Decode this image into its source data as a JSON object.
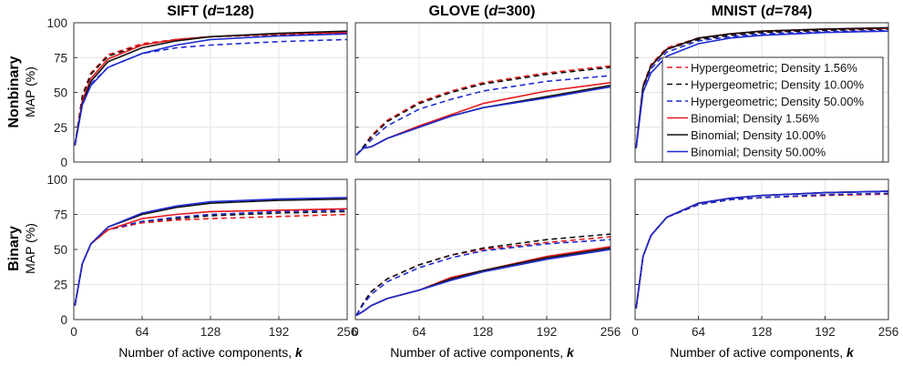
{
  "figure": {
    "row_labels": [
      "Nonbinary",
      "Binary"
    ],
    "column_titles": [
      {
        "name": "SIFT",
        "dim": "d",
        "eq": "=128"
      },
      {
        "name": "GLOVE",
        "dim": "d",
        "eq": "=300"
      },
      {
        "name": "MNIST",
        "dim": "d",
        "eq": "=784"
      }
    ],
    "ylabel": "MAP (%)",
    "xlabel_prefix": "Number of active components, ",
    "xlabel_var": "k"
  },
  "legend": {
    "placement": "top-right of Nonbinary MNIST panel",
    "entries": [
      {
        "label": "Hypergeometric; Density 1.56%",
        "color": "#e8191c",
        "dash": true
      },
      {
        "label": "Hypergeometric; Density 10.00%",
        "color": "#111111",
        "dash": true
      },
      {
        "label": "Hypergeometric; Density 50.00%",
        "color": "#1f2bd1",
        "dash": true
      },
      {
        "label": "Binomial; Density 1.56%",
        "color": "#e8191c",
        "dash": false
      },
      {
        "label": "Binomial; Density 10.00%",
        "color": "#111111",
        "dash": false
      },
      {
        "label": "Binomial; Density 50.00%",
        "color": "#1f2bd1",
        "dash": false
      }
    ]
  },
  "chart_data": [
    {
      "type": "line",
      "row": "Nonbinary",
      "title": "SIFT (d=128)",
      "xlabel": "Number of active components, k",
      "ylabel": "MAP (%)",
      "xlim": [
        0,
        256
      ],
      "ylim": [
        0,
        100
      ],
      "xticks": [
        0,
        64,
        128,
        192,
        256
      ],
      "yticks": [
        0,
        25,
        50,
        75,
        100
      ],
      "grid": true,
      "x": [
        1,
        8,
        16,
        32,
        64,
        96,
        128,
        192,
        256
      ],
      "series": [
        {
          "name": "Hypergeometric; Density 1.56%",
          "values": [
            12,
            48,
            64,
            77,
            85,
            88,
            90,
            91.5,
            92
          ]
        },
        {
          "name": "Hypergeometric; Density 10.00%",
          "values": [
            12,
            47,
            63,
            76,
            84,
            88,
            90,
            91.5,
            92
          ]
        },
        {
          "name": "Hypergeometric; Density 50.00%",
          "values": [
            12,
            42,
            56,
            68,
            78,
            82,
            84,
            86.5,
            88
          ]
        },
        {
          "name": "Binomial; Density 1.56%",
          "values": [
            12,
            44,
            60,
            74,
            84,
            88,
            90,
            92,
            93
          ]
        },
        {
          "name": "Binomial; Density 10.00%",
          "values": [
            12,
            42,
            58,
            72,
            82,
            87,
            90,
            92.5,
            94
          ]
        },
        {
          "name": "Binomial; Density 50.00%",
          "values": [
            12,
            41,
            55,
            68,
            78,
            84,
            88,
            90.5,
            92
          ]
        }
      ]
    },
    {
      "type": "line",
      "row": "Nonbinary",
      "title": "GLOVE (d=300)",
      "xlabel": "Number of active components, k",
      "ylabel": "MAP (%)",
      "xlim": [
        0,
        256
      ],
      "ylim": [
        0,
        100
      ],
      "xticks": [
        0,
        64,
        128,
        192,
        256
      ],
      "yticks": [
        0,
        25,
        50,
        75,
        100
      ],
      "grid": true,
      "x": [
        1,
        8,
        16,
        32,
        64,
        96,
        128,
        192,
        256
      ],
      "series": [
        {
          "name": "Hypergeometric; Density 1.56%",
          "values": [
            5,
            11,
            19,
            30,
            43,
            51,
            57,
            64,
            69
          ]
        },
        {
          "name": "Hypergeometric; Density 10.00%",
          "values": [
            5,
            11,
            18,
            29,
            42,
            50,
            56,
            63,
            68
          ]
        },
        {
          "name": "Hypergeometric; Density 50.00%",
          "values": [
            5,
            10,
            16,
            26,
            38,
            45,
            51,
            58,
            62
          ]
        },
        {
          "name": "Binomial; Density 1.56%",
          "values": [
            5,
            10,
            11,
            17,
            26,
            34,
            42,
            51,
            57
          ]
        },
        {
          "name": "Binomial; Density 10.00%",
          "values": [
            5,
            10,
            11,
            17,
            25,
            33,
            39,
            47,
            55
          ]
        },
        {
          "name": "Binomial; Density 50.00%",
          "values": [
            5,
            10,
            11,
            17,
            25,
            33,
            39,
            46,
            54
          ]
        }
      ]
    },
    {
      "type": "line",
      "row": "Nonbinary",
      "title": "MNIST (d=784)",
      "xlabel": "Number of active components, k",
      "ylabel": "MAP (%)",
      "xlim": [
        0,
        256
      ],
      "ylim": [
        0,
        100
      ],
      "xticks": [
        0,
        64,
        128,
        192,
        256
      ],
      "yticks": [
        0,
        25,
        50,
        75,
        100
      ],
      "grid": true,
      "x": [
        1,
        8,
        16,
        32,
        64,
        96,
        128,
        192,
        256
      ],
      "series": [
        {
          "name": "Hypergeometric; Density 1.56%",
          "values": [
            10,
            55,
            70,
            82,
            89,
            92,
            93.5,
            95,
            96
          ]
        },
        {
          "name": "Hypergeometric; Density 10.00%",
          "values": [
            10,
            54,
            69,
            81,
            88,
            91,
            93,
            94.5,
            95.5
          ]
        },
        {
          "name": "Hypergeometric; Density 50.00%",
          "values": [
            10,
            53,
            67,
            79,
            87,
            90,
            92,
            93.5,
            94.5
          ]
        },
        {
          "name": "Binomial; Density 1.56%",
          "values": [
            10,
            54,
            69,
            81,
            89,
            92,
            94,
            95.5,
            96
          ]
        },
        {
          "name": "Binomial; Density 10.00%",
          "values": [
            10,
            54,
            69,
            81,
            89,
            92,
            94,
            95.5,
            96.5
          ]
        },
        {
          "name": "Binomial; Density 50.00%",
          "values": [
            10,
            50,
            64,
            76,
            85,
            89,
            91,
            93,
            94
          ]
        }
      ]
    },
    {
      "type": "line",
      "row": "Binary",
      "title": "SIFT (d=128)",
      "xlabel": "Number of active components, k",
      "ylabel": "MAP (%)",
      "xlim": [
        0,
        256
      ],
      "ylim": [
        0,
        100
      ],
      "xticks": [
        0,
        64,
        128,
        192,
        256
      ],
      "yticks": [
        0,
        25,
        50,
        75,
        100
      ],
      "grid": true,
      "x": [
        1,
        8,
        16,
        32,
        64,
        96,
        128,
        192,
        256
      ],
      "series": [
        {
          "name": "Hypergeometric; Density 1.56%",
          "values": [
            10,
            40,
            54,
            64,
            69,
            71,
            72,
            73.5,
            75
          ]
        },
        {
          "name": "Hypergeometric; Density 10.00%",
          "values": [
            10,
            40,
            54,
            64,
            70,
            72,
            74,
            76,
            77
          ]
        },
        {
          "name": "Hypergeometric; Density 50.00%",
          "values": [
            10,
            40,
            54,
            64,
            70,
            73,
            75,
            77,
            78
          ]
        },
        {
          "name": "Binomial; Density 1.56%",
          "values": [
            10,
            40,
            54,
            64,
            72,
            75,
            77,
            78,
            79
          ]
        },
        {
          "name": "Binomial; Density 10.00%",
          "values": [
            10,
            40,
            54,
            66,
            75,
            80,
            83,
            85,
            86
          ]
        },
        {
          "name": "Binomial; Density 50.00%",
          "values": [
            10,
            40,
            54,
            66,
            76,
            81,
            84,
            86,
            87
          ]
        }
      ]
    },
    {
      "type": "line",
      "row": "Binary",
      "title": "GLOVE (d=300)",
      "xlabel": "Number of active components, k",
      "ylabel": "MAP (%)",
      "xlim": [
        0,
        256
      ],
      "ylim": [
        0,
        100
      ],
      "xticks": [
        0,
        64,
        128,
        192,
        256
      ],
      "yticks": [
        0,
        25,
        50,
        75,
        100
      ],
      "grid": true,
      "x": [
        1,
        8,
        16,
        32,
        64,
        96,
        128,
        192,
        256
      ],
      "series": [
        {
          "name": "Hypergeometric; Density 1.56%",
          "values": [
            3,
            12,
            20,
            29,
            39,
            46,
            50,
            55,
            59
          ]
        },
        {
          "name": "Hypergeometric; Density 10.00%",
          "values": [
            3,
            12,
            20,
            29,
            39,
            46,
            51,
            57,
            61
          ]
        },
        {
          "name": "Hypergeometric; Density 50.00%",
          "values": [
            3,
            11,
            18,
            27,
            37,
            44,
            49,
            54,
            57
          ]
        },
        {
          "name": "Binomial; Density 1.56%",
          "values": [
            3,
            6,
            10,
            15,
            21,
            30,
            35,
            45,
            52
          ]
        },
        {
          "name": "Binomial; Density 10.00%",
          "values": [
            3,
            6,
            10,
            15,
            21,
            29,
            35,
            44,
            51
          ]
        },
        {
          "name": "Binomial; Density 50.00%",
          "values": [
            3,
            6,
            10,
            15,
            21,
            28,
            34,
            43,
            50
          ]
        }
      ]
    },
    {
      "type": "line",
      "row": "Binary",
      "title": "MNIST (d=784)",
      "xlabel": "Number of active components, k",
      "ylabel": "MAP (%)",
      "xlim": [
        0,
        256
      ],
      "ylim": [
        0,
        100
      ],
      "xticks": [
        0,
        64,
        128,
        192,
        256
      ],
      "yticks": [
        0,
        25,
        50,
        75,
        100
      ],
      "grid": true,
      "x": [
        1,
        8,
        16,
        32,
        64,
        96,
        128,
        192,
        256
      ],
      "series": [
        {
          "name": "Hypergeometric; Density 1.56%",
          "values": [
            8,
            45,
            60,
            73,
            82,
            85.5,
            87,
            88.5,
            89.5
          ]
        },
        {
          "name": "Hypergeometric; Density 10.00%",
          "values": [
            8,
            45,
            60,
            73,
            82,
            85.5,
            87,
            89,
            90
          ]
        },
        {
          "name": "Hypergeometric; Density 50.00%",
          "values": [
            8,
            45,
            60,
            73,
            82,
            85.5,
            87,
            89,
            90
          ]
        },
        {
          "name": "Binomial; Density 1.56%",
          "values": [
            8,
            45,
            60,
            73,
            83,
            86.5,
            88.5,
            90.5,
            91.5
          ]
        },
        {
          "name": "Binomial; Density 10.00%",
          "values": [
            8,
            45,
            60,
            73,
            83,
            86.5,
            88.5,
            90.5,
            91.5
          ]
        },
        {
          "name": "Binomial; Density 50.00%",
          "values": [
            8,
            45,
            60,
            73,
            83,
            86.5,
            88.5,
            90.5,
            91.5
          ]
        }
      ]
    }
  ]
}
